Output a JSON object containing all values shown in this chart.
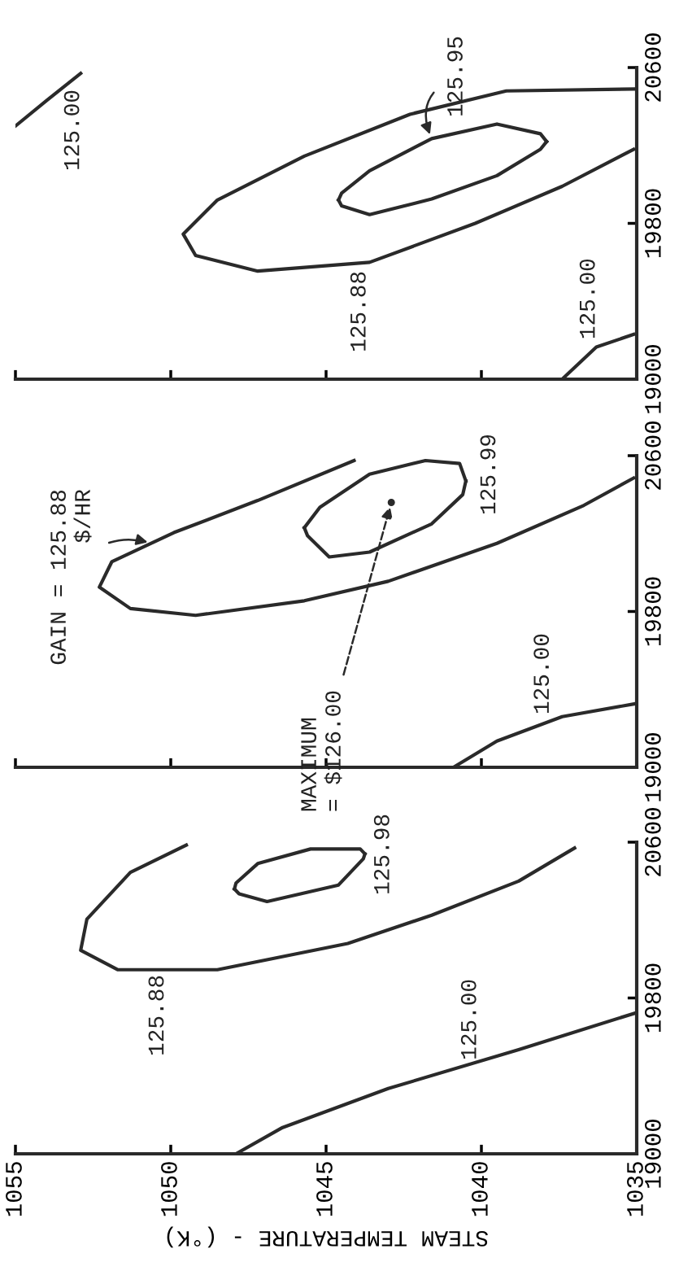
{
  "chart_data": [
    {
      "type": "line",
      "xlim": [
        1055,
        1035
      ],
      "xticks": [
        1055,
        1050,
        1045,
        1040,
        1035
      ],
      "ylim": [
        19000,
        20600
      ],
      "yticks": [
        19000,
        19800,
        20600
      ],
      "tick_labels": "y",
      "series": [
        {
          "color": "#2a2a2a",
          "x": [
            1055.0,
            1054.0,
            1052.9
          ],
          "values": [
            20300,
            20430,
            20570
          ]
        },
        {
          "color": "#2a2a2a",
          "x": [
            1035.1,
            1039.2,
            1042.3,
            1045.7,
            1048.5,
            1049.6,
            1049.2,
            1047.2,
            1043.6,
            1040.2,
            1037.4,
            1035.1
          ],
          "values": [
            20490,
            20480,
            20360,
            20145,
            19920,
            19745,
            19635,
            19555,
            19600,
            19800,
            19990,
            20180
          ]
        },
        {
          "color": "#2a2a2a",
          "x": [
            1044.6,
            1044.5,
            1043.6,
            1041.6,
            1039.5,
            1038.1,
            1037.9
          ],
          "values": [
            19920,
            19955,
            20070,
            20235,
            20310,
            20260,
            20220
          ]
        },
        {
          "color": "#2a2a2a",
          "x": [
            1044.6,
            1044.5,
            1043.6,
            1041.6,
            1039.5,
            1038.1,
            1037.9
          ],
          "values": [
            19920,
            19890,
            19845,
            19925,
            20045,
            20180,
            20220
          ]
        },
        {
          "color": "#2a2a2a",
          "x": [
            1037.4,
            1036.3,
            1035.1
          ],
          "values": [
            19000,
            19165,
            19230
          ]
        }
      ],
      "annotations": [
        "125.00",
        {
          "text": "125.95",
          "x": 1041.6,
          "y": 20235
        },
        "125.88",
        "125.00"
      ]
    },
    {
      "type": "line",
      "xlim": [
        1055,
        1035
      ],
      "xticks": [
        1055,
        1050,
        1045,
        1040,
        1035
      ],
      "ylim": [
        19000,
        20600
      ],
      "yticks": [
        19000,
        19800,
        20600
      ],
      "tick_labels": "y",
      "series": [
        {
          "color": "#2a2a2a",
          "x": [
            1044.1,
            1047.2,
            1049.9,
            1051.9,
            1052.3,
            1051.3,
            1049.2,
            1045.7,
            1043.0,
            1039.5,
            1036.7,
            1035.1
          ],
          "values": [
            20575,
            20370,
            20205,
            20055,
            19925,
            19815,
            19780,
            19855,
            19955,
            20150,
            20345,
            20485
          ]
        },
        {
          "color": "#2a2a2a",
          "x": [
            1045.7,
            1045.6,
            1044.9,
            1043.6,
            1041.6,
            1040.6,
            1040.5
          ],
          "values": [
            20230,
            20190,
            20080,
            20105,
            20250,
            20400,
            20470
          ]
        },
        {
          "color": "#2a2a2a",
          "x": [
            1045.7,
            1045.2,
            1043.6,
            1041.8,
            1040.7,
            1040.5
          ],
          "values": [
            20230,
            20335,
            20505,
            20575,
            20560,
            20470
          ]
        },
        {
          "color": "#2a2a2a",
          "x": [
            1040.9,
            1039.5,
            1037.4,
            1035.1
          ],
          "values": [
            19000,
            19135,
            19260,
            19325
          ]
        },
        {
          "type": "scatter",
          "color": "#2a2a2a",
          "marker": "circle",
          "x": [
            1042.9
          ],
          "values": [
            20360
          ]
        }
      ],
      "annotations": [
        {
          "text": "GAIN = 125.88\n$/HR",
          "x": 1050.6,
          "y": 20150
        },
        {
          "text": "MAXIMUM\n= $126.00",
          "x": 1042.9,
          "y": 20360
        },
        "125.99",
        "125.00"
      ]
    },
    {
      "type": "line",
      "xlim": [
        1055,
        1035
      ],
      "xticks": [
        1055,
        1050,
        1045,
        1040,
        1035
      ],
      "ylim": [
        19000,
        20600
      ],
      "yticks": [
        19000,
        19800,
        20600
      ],
      "xlabel": "STEAM TEMPERATURE - (°K)",
      "series": [
        {
          "color": "#2a2a2a",
          "x": [
            1047.9,
            1046.4,
            1043.0,
            1038.8,
            1035.0
          ],
          "values": [
            19000,
            19135,
            19335,
            19535,
            19725
          ]
        },
        {
          "color": "#2a2a2a",
          "x": [
            1049.5,
            1051.3,
            1052.7,
            1052.9,
            1051.7,
            1048.5,
            1044.3,
            1041.6,
            1038.8,
            1037.0
          ],
          "values": [
            20585,
            20445,
            20205,
            20045,
            19945,
            19945,
            20080,
            20225,
            20400,
            20570
          ]
        },
        {
          "color": "#2a2a2a",
          "x": [
            1047.95,
            1047.9,
            1047.2,
            1045.5,
            1043.9,
            1043.75
          ],
          "values": [
            20360,
            20390,
            20490,
            20565,
            20565,
            20540
          ]
        },
        {
          "color": "#2a2a2a",
          "x": [
            1047.95,
            1047.8,
            1046.9,
            1044.6,
            1043.8,
            1043.75
          ],
          "values": [
            20360,
            20335,
            20295,
            20380,
            20515,
            20540
          ]
        }
      ],
      "annotations": [
        "125.88",
        "125.00",
        "125.98"
      ]
    }
  ]
}
